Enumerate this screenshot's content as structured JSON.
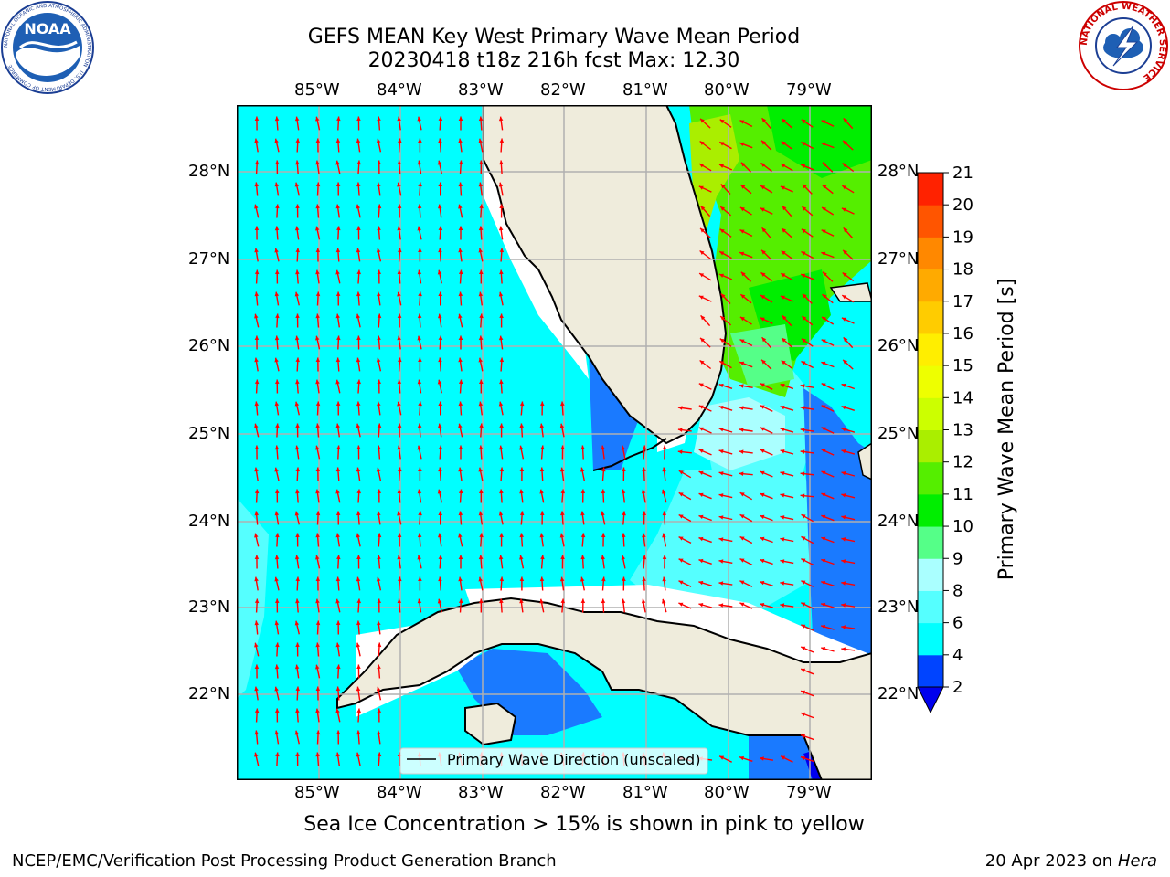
{
  "header": {
    "title_line1": "GEFS MEAN Key West Primary Wave Mean Period",
    "title_line2": "20230418 t18z 216h fcst   Max: 12.30"
  },
  "map": {
    "lon_labels": [
      "85°W",
      "84°W",
      "83°W",
      "82°W",
      "81°W",
      "80°W",
      "79°W"
    ],
    "lat_labels": [
      "28°N",
      "27°N",
      "26°N",
      "25°N",
      "24°N",
      "23°N",
      "22°N"
    ],
    "legend_label": "Primary Wave Direction (unscaled)",
    "land_color": "#efecdc",
    "arrow_color": "#ff0000"
  },
  "colorbar": {
    "label": "Primary Wave Mean Period [s]",
    "ticks": [
      "2",
      "4",
      "6",
      "8",
      "9",
      "10",
      "11",
      "12",
      "13",
      "14",
      "15",
      "16",
      "17",
      "18",
      "19",
      "20",
      "21"
    ],
    "colors": [
      "#0044ff",
      "#00ffff",
      "#55ffff",
      "#aaffff",
      "#55ff88",
      "#00ee00",
      "#55ee00",
      "#aaee00",
      "#ccff00",
      "#eeff00",
      "#ffee00",
      "#ffcc00",
      "#ffaa00",
      "#ff8800",
      "#ff5500",
      "#ff2200"
    ],
    "under_color": "#0000ee"
  },
  "logos": {
    "noaa_text": "NOAA",
    "noaa_ring": "NATIONAL OCEANIC AND ATMOSPHERIC ADMINISTRATION · U.S. DEPARTMENT OF COMMERCE",
    "nws_ring": "NATIONAL WEATHER SERVICE"
  },
  "footer": {
    "subtitle": "Sea Ice Concentration > 15% is shown in pink to yellow",
    "left": "NCEP/EMC/Verification Post Processing Product Generation Branch",
    "date": "20 Apr 2023 on",
    "host": "Hera"
  }
}
